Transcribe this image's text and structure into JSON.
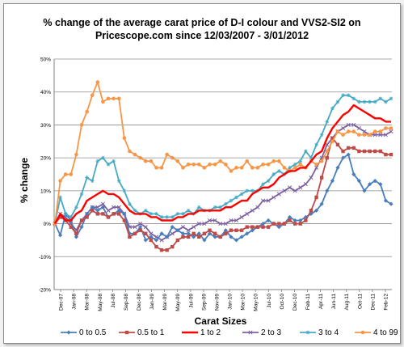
{
  "chart_data": {
    "type": "line",
    "title_line1": "% change of the average carat price of  D-I colour and VVS2-SI2  on",
    "title_line2": "Pricescope.com since 12/03/2007 - 3/01/2012",
    "xlabel": "Carat Sizes",
    "ylabel": "% change",
    "ylim": [
      -20,
      50
    ],
    "yticks": [
      -20,
      -10,
      0,
      10,
      20,
      30,
      40,
      50
    ],
    "ytick_labels": [
      "-20%",
      "-10%",
      "0%",
      "10%",
      "20%",
      "30%",
      "40%",
      "50%"
    ],
    "x_tick_labels": [
      "Dec-07",
      "Jan-08",
      "Mar-08",
      "May-08",
      "Jul-08",
      "Sep-08",
      "Dec-08",
      "Jan-09",
      "Mar-09",
      "May-09",
      "Jul-09",
      "Sep-09",
      "Nov-09",
      "Jan-10",
      "Mar-10",
      "May-10",
      "Jul-10",
      "Oct-10",
      "Dec-10",
      "Feb-11",
      "Apr-11",
      "Jun-11",
      "Aug-11",
      "Oct-11",
      "Dec-11",
      "Feb-12"
    ],
    "grid": "horizontal",
    "legend_position": "bottom",
    "series": [
      {
        "name": "0 to 0.5",
        "color": "#4a7ebb",
        "marker": "diamond",
        "values": [
          0,
          -3.5,
          3,
          1,
          -4,
          -1,
          3,
          5,
          4,
          5,
          2,
          3,
          4,
          3,
          -3,
          -3,
          -1,
          -5,
          -4,
          -5,
          -3,
          -4,
          -1,
          -2,
          -3,
          -3,
          -4,
          -3,
          -5,
          -3,
          -4,
          -4,
          -2,
          -4,
          -5,
          -4,
          -3,
          -2,
          -1,
          0,
          1,
          0,
          -1,
          0,
          2,
          1,
          1,
          2,
          3,
          4,
          6,
          10,
          13,
          17,
          20,
          21,
          15,
          13,
          10,
          12,
          13,
          12,
          7,
          6
        ]
      },
      {
        "name": "0.5  to 1",
        "color": "#be4b48",
        "marker": "square",
        "values": [
          0,
          2,
          1,
          -1,
          -3,
          1,
          2,
          4,
          3,
          3,
          2,
          3,
          3,
          1,
          -4,
          -3,
          -2,
          -3,
          -5,
          -7,
          -8,
          -8,
          -7,
          -5,
          -4,
          -4,
          -3,
          -4,
          -3,
          -2,
          -3,
          -4,
          -3,
          -2,
          -2,
          -2,
          -1,
          -1,
          -1,
          -1,
          -1,
          0,
          0,
          0,
          1,
          0,
          0,
          1,
          4,
          8,
          14,
          20,
          26,
          24,
          22,
          23,
          23,
          22,
          22,
          22,
          22,
          22,
          21,
          21
        ]
      },
      {
        "name": "1 to 2",
        "color": "#ff0000",
        "marker": "none",
        "values": [
          0,
          3,
          1,
          1,
          3,
          4,
          7,
          8,
          9,
          10,
          9,
          9,
          8,
          6,
          4,
          3,
          3,
          3,
          2,
          2,
          1,
          1,
          1,
          2,
          2,
          3,
          3,
          4,
          4,
          4,
          4,
          4,
          5,
          5,
          6,
          7,
          7,
          9,
          10,
          11,
          11,
          12,
          14,
          15,
          16,
          16,
          17,
          17,
          19,
          21,
          22,
          26,
          29,
          31,
          33,
          34,
          36,
          35,
          34,
          33,
          32,
          32,
          31,
          31
        ]
      },
      {
        "name": "2 to 3",
        "color": "#7d60a0",
        "marker": "x",
        "values": [
          0,
          3,
          2,
          0,
          -2,
          1,
          3,
          5,
          5,
          6,
          4,
          5,
          5,
          3,
          -1,
          -1,
          0,
          -1,
          -3,
          -4,
          -5,
          -4,
          -3,
          -2,
          -1,
          -2,
          -1,
          0,
          0,
          1,
          1,
          0,
          0,
          1,
          1,
          2,
          3,
          4,
          5,
          7,
          7,
          8,
          9,
          10,
          11,
          10,
          11,
          12,
          14,
          17,
          20,
          24,
          26,
          28,
          29,
          30,
          30,
          29,
          28,
          27,
          27,
          27,
          27,
          28
        ]
      },
      {
        "name": "3 to 4",
        "color": "#46aac5",
        "marker": "asterisk",
        "values": [
          0,
          8,
          3,
          2,
          5,
          9,
          14,
          13,
          19,
          20,
          18,
          19,
          13,
          10,
          6,
          4,
          3,
          4,
          3,
          3,
          2,
          2,
          2,
          3,
          3,
          4,
          3,
          5,
          4,
          4,
          5,
          5,
          6,
          7,
          8,
          9,
          10,
          10,
          10,
          12,
          13,
          15,
          16,
          15,
          17,
          18,
          19,
          22,
          20,
          24,
          27,
          31,
          35,
          37,
          39,
          39,
          38,
          37,
          37,
          37,
          37,
          38,
          37,
          38
        ]
      },
      {
        "name": "4 to 99",
        "color": "#f79646",
        "marker": "circle",
        "values": [
          0,
          13,
          15,
          15,
          21,
          30,
          34,
          39,
          43,
          37,
          38,
          38,
          38,
          26,
          22,
          21,
          20,
          19,
          19,
          17,
          17,
          21,
          20,
          19,
          17,
          18,
          18,
          18,
          17,
          18,
          18,
          19,
          18,
          16,
          17,
          17,
          19,
          17,
          17,
          18,
          18,
          19,
          19,
          17,
          16,
          17,
          18,
          17,
          19,
          18,
          19,
          22,
          25,
          28,
          27,
          28,
          28,
          27,
          27,
          27,
          28,
          28,
          29,
          29
        ]
      }
    ]
  }
}
